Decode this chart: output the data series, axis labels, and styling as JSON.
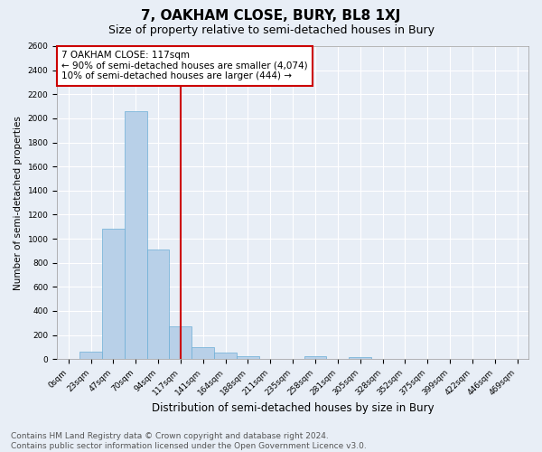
{
  "title": "7, OAKHAM CLOSE, BURY, BL8 1XJ",
  "subtitle": "Size of property relative to semi-detached houses in Bury",
  "xlabel": "Distribution of semi-detached houses by size in Bury",
  "ylabel": "Number of semi-detached properties",
  "bar_labels": [
    "0sqm",
    "23sqm",
    "47sqm",
    "70sqm",
    "94sqm",
    "117sqm",
    "141sqm",
    "164sqm",
    "188sqm",
    "211sqm",
    "235sqm",
    "258sqm",
    "281sqm",
    "305sqm",
    "328sqm",
    "352sqm",
    "375sqm",
    "399sqm",
    "422sqm",
    "446sqm",
    "469sqm"
  ],
  "bar_values": [
    0,
    60,
    1080,
    2060,
    910,
    270,
    100,
    50,
    20,
    0,
    0,
    20,
    0,
    15,
    0,
    0,
    0,
    0,
    0,
    0,
    0
  ],
  "bar_color": "#b8d0e8",
  "bar_edge_color": "#6baed6",
  "vline_x": 5,
  "vline_color": "#cc0000",
  "annotation_text": "7 OAKHAM CLOSE: 117sqm\n← 90% of semi-detached houses are smaller (4,074)\n10% of semi-detached houses are larger (444) →",
  "annotation_box_color": "#cc0000",
  "ylim": [
    0,
    2600
  ],
  "yticks": [
    0,
    200,
    400,
    600,
    800,
    1000,
    1200,
    1400,
    1600,
    1800,
    2000,
    2200,
    2400,
    2600
  ],
  "footnote": "Contains HM Land Registry data © Crown copyright and database right 2024.\nContains public sector information licensed under the Open Government Licence v3.0.",
  "bg_color": "#e8eef6",
  "grid_color": "#ffffff",
  "title_fontsize": 11,
  "subtitle_fontsize": 9,
  "xlabel_fontsize": 8.5,
  "ylabel_fontsize": 7.5,
  "tick_fontsize": 6.5,
  "annotation_fontsize": 7.5,
  "footnote_fontsize": 6.5
}
